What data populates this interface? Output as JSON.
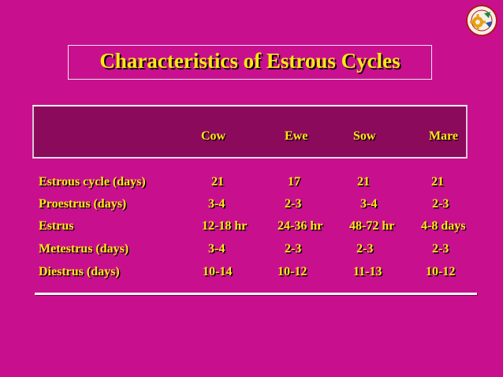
{
  "slide": {
    "title": "Characteristics of Estrous Cycles"
  },
  "table": {
    "columns": [
      "Cow",
      "Ewe",
      "Sow",
      "Mare"
    ],
    "rows": [
      {
        "label": "Estrous cycle (days)",
        "values": [
          "21",
          "17",
          "21",
          "21"
        ]
      },
      {
        "label": "Proestrus (days)",
        "values": [
          "3-4",
          "2-3",
          "3-4",
          "2-3"
        ]
      },
      {
        "label": "Estrus",
        "values": [
          "12-18 hr",
          "24-36 hr",
          "48-72 hr",
          "4-8 days"
        ]
      },
      {
        "label": "Metestrus (days)",
        "values": [
          "3-4",
          "2-3",
          "2-3",
          "2-3"
        ]
      },
      {
        "label": "Diestrus (days)",
        "values": [
          "10-14",
          "10-12",
          "11-13",
          "10-12"
        ]
      }
    ]
  },
  "colors": {
    "background": "#C8108E",
    "header_band": "#8B0A5C",
    "text": "#FFE814"
  },
  "logo": {
    "icon": "university-seal-icon"
  }
}
